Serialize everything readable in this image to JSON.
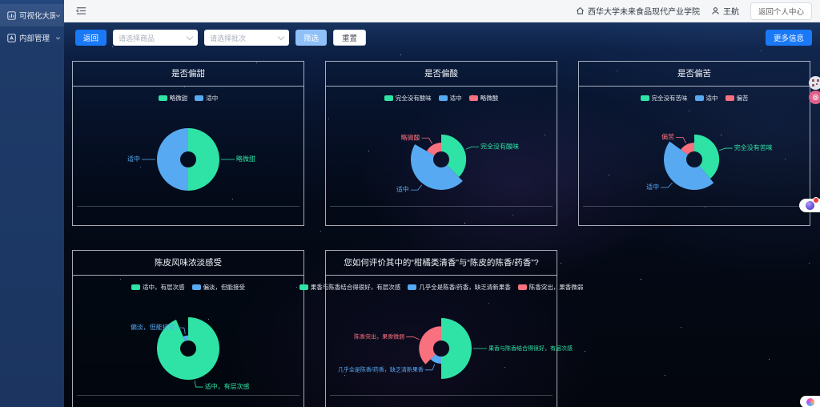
{
  "sidebar": {
    "items": [
      {
        "label": "可视化大屏"
      },
      {
        "label": "内部管理"
      }
    ]
  },
  "header": {
    "org": "西华大学未来食品现代产业学院",
    "user": "王航",
    "profile_button": "返回个人中心"
  },
  "toolbar": {
    "back": "返回",
    "product_placeholder": "请选择商品",
    "batch_placeholder": "请选择批次",
    "filter": "筛选",
    "reset": "重置",
    "more": "更多信息"
  },
  "colors": {
    "green": "#2fe3a6",
    "blue": "#57a9f2",
    "pink": "#f9707f",
    "accent_blue": "#1a79f7"
  },
  "chart_data": [
    {
      "type": "pie",
      "title": "是否偏甜",
      "rose": false,
      "inner_radius": 10,
      "max_radius": 39,
      "legend_position": "top",
      "slices": [
        {
          "label": "略微甜",
          "value": 50,
          "color": "#2fe3a6",
          "r": 1.0
        },
        {
          "label": "适中",
          "value": 50,
          "color": "#57a9f2",
          "r": 1.0
        }
      ]
    },
    {
      "type": "pie",
      "title": "是否偏酸",
      "rose": true,
      "inner_radius": 10,
      "max_radius": 38,
      "legend_position": "top",
      "slices": [
        {
          "label": "完全没有酸味",
          "value": 37.5,
          "color": "#2fe3a6",
          "r": 0.82
        },
        {
          "label": "适中",
          "value": 45.8,
          "color": "#57a9f2",
          "r": 1.0
        },
        {
          "label": "略微酸",
          "value": 16.7,
          "color": "#f9707f",
          "r": 0.55
        }
      ]
    },
    {
      "type": "pie",
      "title": "是否偏苦",
      "rose": true,
      "inner_radius": 10,
      "max_radius": 38,
      "legend_position": "top",
      "slices": [
        {
          "label": "完全没有苦味",
          "value": 39,
          "color": "#2fe3a6",
          "r": 0.82
        },
        {
          "label": "适中",
          "value": 46,
          "color": "#57a9f2",
          "r": 1.0
        },
        {
          "label": "偏苦",
          "value": 15,
          "color": "#f9707f",
          "r": 0.55
        }
      ]
    },
    {
      "type": "pie",
      "title": "陈皮风味浓淡感受",
      "rose": true,
      "inner_radius": 10,
      "max_radius": 39,
      "legend_position": "top",
      "slices": [
        {
          "label": "适中，有层次感",
          "value": 93.7,
          "color": "#2fe3a6",
          "r": 1.0
        },
        {
          "label": "偏淡，但能接受",
          "value": 6.3,
          "color": "#57a9f2",
          "r": 0.42
        }
      ]
    },
    {
      "type": "pie",
      "title": "您如何评价其中的“柑橘类清香”与“陈皮的陈香/药香”?",
      "rose": true,
      "inner_radius": 10,
      "max_radius": 38,
      "legend_position": "top",
      "slices": [
        {
          "label": "果香与陈香结合得很好，有层次感",
          "value": 50,
          "color": "#2fe3a6",
          "r": 1.0
        },
        {
          "label": "几乎全是陈香/药香，缺乏清新果香",
          "value": 12.5,
          "color": "#57a9f2",
          "r": 0.5
        },
        {
          "label": "陈香突出，果香微弱",
          "value": 37.5,
          "color": "#f9707f",
          "r": 0.73
        }
      ]
    }
  ]
}
